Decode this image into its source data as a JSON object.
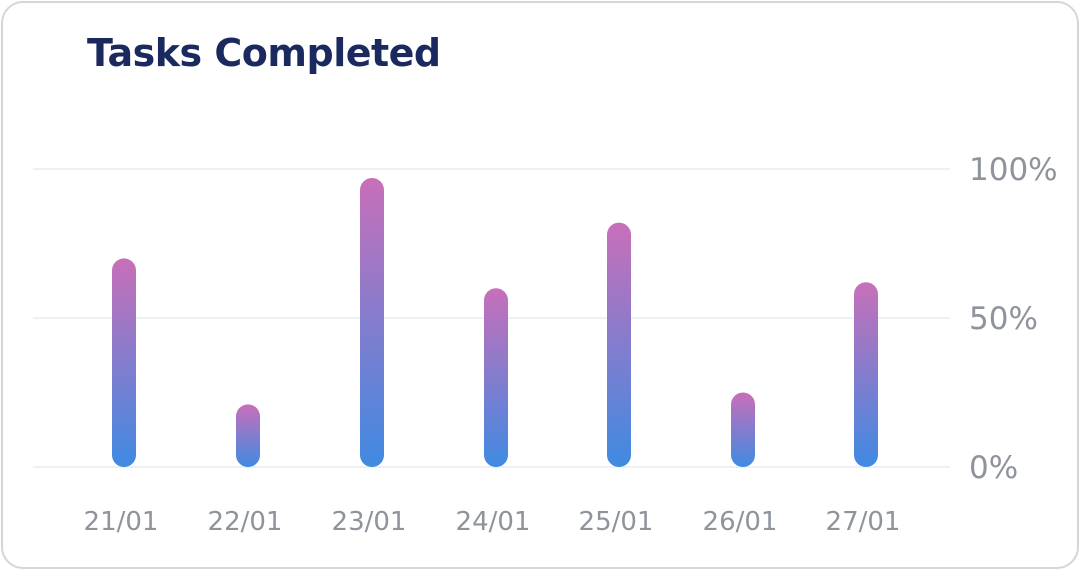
{
  "chart_data": {
    "type": "bar",
    "title": "Tasks Completed",
    "categories": [
      "21/01",
      "22/01",
      "23/01",
      "24/01",
      "25/01",
      "26/01",
      "27/01"
    ],
    "values": [
      70,
      21,
      97,
      60,
      82,
      25,
      62
    ],
    "ylim": [
      0,
      100
    ],
    "yticks": [
      0,
      50,
      100
    ],
    "ytick_labels": [
      "0%",
      "50%",
      "100%"
    ],
    "y_axis_side": "right",
    "grid": true,
    "colors": {
      "bar_top": "#c86fb9",
      "bar_bottom": "#3f8ae2",
      "grid": "#eef0f5",
      "title": "#1b2a5e",
      "tick": "#8e939c"
    }
  }
}
